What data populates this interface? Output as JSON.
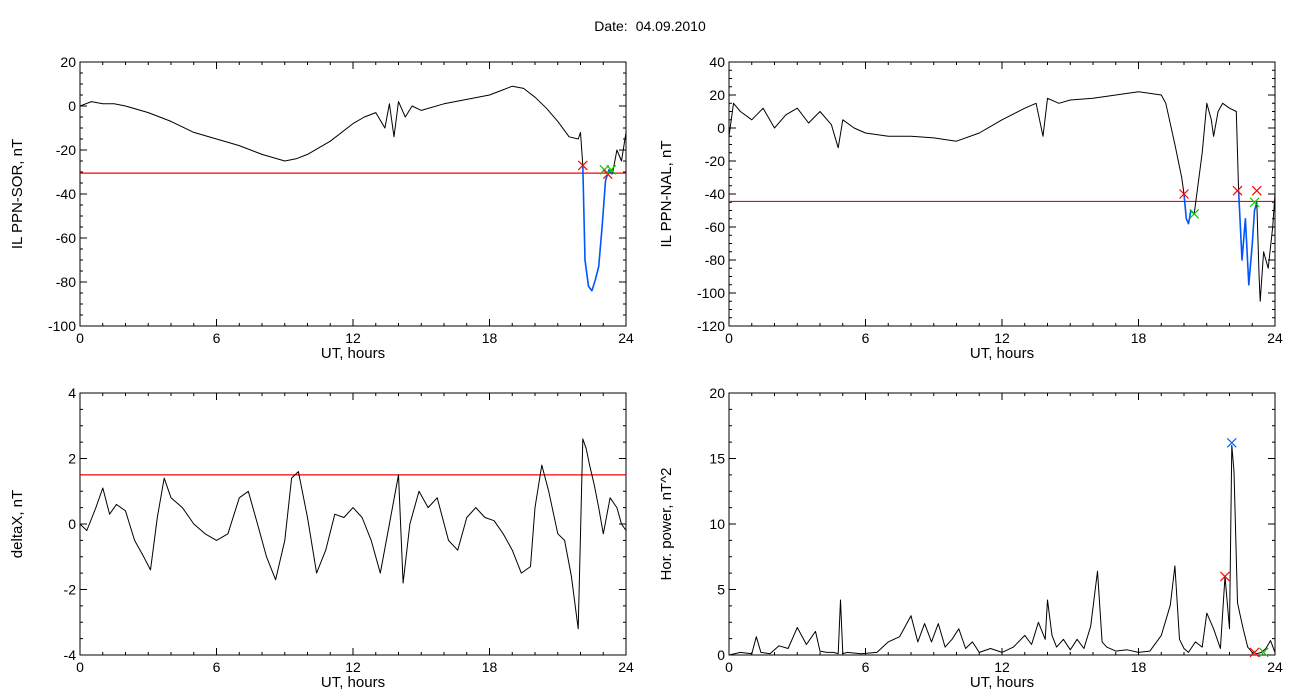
{
  "header": {
    "date_label": "Date:",
    "date_value": "04.09.2010"
  },
  "colors": {
    "signal": "#000000",
    "threshold": "#ff0000",
    "event": "#0055ff",
    "marker_red": "#ff0000",
    "marker_green": "#00cc00",
    "marker_blue": "#0066ff"
  },
  "chart_data": [
    {
      "id": "sor",
      "type": "line",
      "xlabel": "UT, hours",
      "ylabel": "IL PPN-SOR, nT",
      "xlim": [
        0,
        24
      ],
      "ylim": [
        -100,
        20
      ],
      "xticks": [
        0,
        6,
        12,
        18,
        24
      ],
      "yticks": [
        -100,
        -80,
        -60,
        -40,
        -20,
        0,
        20
      ],
      "threshold": -30.5,
      "series": [
        {
          "color": "#000000",
          "x": [
            0,
            0.5,
            1,
            1.5,
            2,
            3,
            4,
            5,
            6,
            7,
            8,
            9,
            9.5,
            10,
            11,
            12,
            12.5,
            13,
            13.4,
            13.6,
            13.8,
            14,
            14.3,
            14.6,
            15,
            16,
            17,
            18,
            18.5,
            19,
            19.5,
            20,
            20.5,
            21,
            21.5,
            21.9,
            22.0,
            22.1
          ],
          "y": [
            0,
            2,
            1,
            1,
            0,
            -3,
            -7,
            -12,
            -15,
            -18,
            -22,
            -25,
            -24,
            -22,
            -16,
            -8,
            -5,
            -3,
            -10,
            1,
            -14,
            2,
            -5,
            0,
            -2,
            1,
            3,
            5,
            7,
            9,
            8,
            4,
            -1,
            -7,
            -14,
            -15,
            -12,
            -27
          ]
        },
        {
          "color": "#000000",
          "x": [
            23.4,
            23.6,
            23.8,
            24
          ],
          "y": [
            -31,
            -20,
            -25,
            -12
          ]
        },
        {
          "color": "#0055ff",
          "x": [
            22.1,
            22.2,
            22.35,
            22.5,
            22.65,
            22.8,
            22.95,
            23.1,
            23.25,
            23.4
          ],
          "y": [
            -27,
            -70,
            -82,
            -84,
            -79,
            -73,
            -55,
            -34,
            -29,
            -31
          ]
        }
      ],
      "markers": [
        {
          "x": 22.1,
          "y": -27,
          "color": "#ff0000"
        },
        {
          "x": 23.05,
          "y": -29,
          "color": "#00cc00"
        },
        {
          "x": 23.2,
          "y": -31,
          "color": "#ff0000"
        },
        {
          "x": 23.35,
          "y": -29,
          "color": "#00cc00"
        }
      ]
    },
    {
      "id": "nal",
      "type": "line",
      "xlabel": "UT, hours",
      "ylabel": "IL PPN-NAL, nT",
      "xlim": [
        0,
        24
      ],
      "ylim": [
        -120,
        40
      ],
      "xticks": [
        0,
        6,
        12,
        18,
        24
      ],
      "yticks": [
        -120,
        -100,
        -80,
        -60,
        -40,
        -20,
        0,
        20,
        40
      ],
      "threshold": -44.5,
      "series": [
        {
          "color": "#000000",
          "x": [
            0,
            0.2,
            0.5,
            1,
            1.5,
            2,
            2.5,
            3,
            3.5,
            4,
            4.5,
            4.8,
            5,
            5.5,
            6,
            7,
            8,
            9,
            10,
            11,
            12,
            13,
            13.5,
            13.8,
            14,
            14.5,
            15,
            16,
            17,
            18,
            19,
            19.2,
            19.6,
            19.9,
            20.0
          ],
          "y": [
            -5,
            15,
            10,
            5,
            12,
            0,
            8,
            12,
            3,
            10,
            2,
            -12,
            5,
            0,
            -3,
            -5,
            -5,
            -6,
            -8,
            -3,
            5,
            12,
            15,
            -5,
            18,
            15,
            17,
            18,
            20,
            22,
            20,
            15,
            -10,
            -30,
            -40
          ]
        },
        {
          "color": "#000000",
          "x": [
            20.45,
            20.8,
            21.0,
            21.2,
            21.3,
            21.5,
            21.7,
            22.0,
            22.3,
            22.4
          ],
          "y": [
            -52,
            -15,
            15,
            5,
            -5,
            10,
            15,
            12,
            10,
            -38
          ]
        },
        {
          "color": "#0055ff",
          "x": [
            20.0,
            20.1,
            20.2,
            20.3,
            20.45
          ],
          "y": [
            -40,
            -55,
            -58,
            -50,
            -52
          ]
        },
        {
          "color": "#0055ff",
          "x": [
            22.4,
            22.55,
            22.7,
            22.85,
            23.0,
            23.1,
            23.2
          ],
          "y": [
            -38,
            -80,
            -55,
            -95,
            -70,
            -50,
            -45
          ]
        },
        {
          "color": "#000000",
          "x": [
            23.2,
            23.3,
            23.35,
            23.5,
            23.7,
            23.9,
            24
          ],
          "y": [
            -45,
            -90,
            -105,
            -75,
            -85,
            -60,
            -40
          ]
        }
      ],
      "markers": [
        {
          "x": 20.0,
          "y": -40,
          "color": "#ff0000"
        },
        {
          "x": 20.45,
          "y": -52,
          "color": "#00cc00"
        },
        {
          "x": 22.35,
          "y": -38,
          "color": "#ff0000"
        },
        {
          "x": 23.1,
          "y": -45,
          "color": "#00cc00"
        },
        {
          "x": 23.2,
          "y": -38,
          "color": "#ff0000"
        }
      ]
    },
    {
      "id": "deltax",
      "type": "line",
      "xlabel": "UT, hours",
      "ylabel": "deltaX, nT",
      "xlim": [
        0,
        24
      ],
      "ylim": [
        -4,
        4
      ],
      "xticks": [
        0,
        6,
        12,
        18,
        24
      ],
      "yticks": [
        -4,
        -2,
        0,
        2,
        4
      ],
      "threshold": 1.5,
      "series": [
        {
          "color": "#000000",
          "x": [
            0,
            0.3,
            0.7,
            1.0,
            1.3,
            1.6,
            2.0,
            2.4,
            2.8,
            3.1,
            3.4,
            3.7,
            4.0,
            4.5,
            5.0,
            5.5,
            6.0,
            6.5,
            7.0,
            7.4,
            7.8,
            8.2,
            8.6,
            9.0,
            9.3,
            9.6,
            10.0,
            10.4,
            10.8,
            11.2,
            11.6,
            12.0,
            12.4,
            12.8,
            13.2,
            13.6,
            14.0,
            14.2,
            14.5,
            14.9,
            15.3,
            15.7,
            16.2,
            16.6,
            17.0,
            17.4,
            17.8,
            18.2,
            18.6,
            19.0,
            19.4,
            19.8,
            20.0,
            20.3,
            20.6,
            21.0,
            21.3,
            21.6,
            21.9,
            22.1,
            22.25,
            22.4,
            22.6,
            22.8,
            23.0,
            23.3,
            23.6,
            23.8,
            24
          ],
          "y": [
            0,
            -0.2,
            0.5,
            1.1,
            0.3,
            0.6,
            0.4,
            -0.5,
            -1.0,
            -1.4,
            0.2,
            1.4,
            0.8,
            0.5,
            0,
            -0.3,
            -0.5,
            -0.3,
            0.8,
            1.0,
            0,
            -1.0,
            -1.7,
            -0.5,
            1.4,
            1.6,
            0.2,
            -1.5,
            -0.8,
            0.3,
            0.2,
            0.5,
            0.2,
            -0.5,
            -1.5,
            0,
            1.5,
            -1.8,
            0,
            1.0,
            0.5,
            0.8,
            -0.5,
            -0.8,
            0.2,
            0.5,
            0.2,
            0.1,
            -0.3,
            -0.8,
            -1.5,
            -1.3,
            0.5,
            1.8,
            1.0,
            -0.3,
            -0.5,
            -1.6,
            -3.2,
            2.6,
            2.3,
            1.8,
            1.2,
            0.5,
            -0.3,
            0.8,
            0.5,
            0,
            -0.2
          ]
        }
      ],
      "markers": []
    },
    {
      "id": "hpow",
      "type": "line",
      "xlabel": "UT, hours",
      "ylabel": "Hor. power, nT^2",
      "xlim": [
        0,
        24
      ],
      "ylim": [
        0,
        20
      ],
      "xticks": [
        0,
        6,
        12,
        18,
        24
      ],
      "yticks": [
        0,
        5,
        10,
        15,
        20
      ],
      "threshold": null,
      "series": [
        {
          "color": "#000000",
          "x": [
            0,
            0.5,
            1,
            1.2,
            1.4,
            1.8,
            2.2,
            2.6,
            3.0,
            3.4,
            3.8,
            4.0,
            4.3,
            4.6,
            4.8,
            4.9,
            5.0,
            5.2,
            5.8,
            6.5,
            7.0,
            7.5,
            8.0,
            8.3,
            8.6,
            8.9,
            9.2,
            9.5,
            9.8,
            10.1,
            10.4,
            10.7,
            11.0,
            11.5,
            12.0,
            12.5,
            13.0,
            13.3,
            13.6,
            13.9,
            14.0,
            14.2,
            14.4,
            14.7,
            15.0,
            15.3,
            15.6,
            15.9,
            16.2,
            16.4,
            16.6,
            17.0,
            17.5,
            18.0,
            18.5,
            19.0,
            19.4,
            19.6,
            19.8,
            20.0,
            20.2,
            20.5,
            20.8,
            21.0,
            21.3,
            21.6,
            21.8,
            22.0,
            22.1,
            22.2,
            22.35,
            22.45,
            22.6,
            22.8,
            23.0,
            23.2,
            23.4,
            23.6,
            23.8,
            24
          ],
          "y": [
            0,
            0.2,
            0.1,
            1.4,
            0.2,
            0.1,
            0.7,
            0.5,
            2.1,
            0.8,
            1.8,
            0.3,
            0.2,
            0.2,
            0.1,
            4.2,
            0.1,
            0.2,
            0.1,
            0.2,
            1.0,
            1.4,
            3.0,
            1.0,
            2.4,
            1.0,
            2.4,
            0.6,
            1.2,
            2.0,
            0.5,
            1.0,
            0.2,
            0.5,
            0.2,
            0.6,
            1.5,
            0.8,
            2.5,
            1.2,
            4.2,
            1.5,
            0.6,
            1.2,
            0.4,
            1.2,
            0.5,
            2.2,
            6.4,
            1.0,
            0.6,
            0.3,
            0.4,
            0.2,
            0.3,
            1.5,
            3.8,
            6.8,
            1.2,
            0.5,
            0.2,
            1.0,
            0.6,
            3.2,
            2.0,
            0.5,
            6.0,
            2.0,
            16.0,
            14.0,
            4.0,
            3.2,
            2.0,
            0.6,
            0.2,
            0.1,
            0.2,
            0.5,
            1.1,
            0.2
          ]
        }
      ],
      "markers": [
        {
          "x": 21.8,
          "y": 6.0,
          "color": "#ff0000"
        },
        {
          "x": 22.1,
          "y": 16.2,
          "color": "#0066ff"
        },
        {
          "x": 23.1,
          "y": 0.2,
          "color": "#ff0000"
        },
        {
          "x": 23.5,
          "y": 0.2,
          "color": "#00cc00"
        }
      ]
    }
  ]
}
